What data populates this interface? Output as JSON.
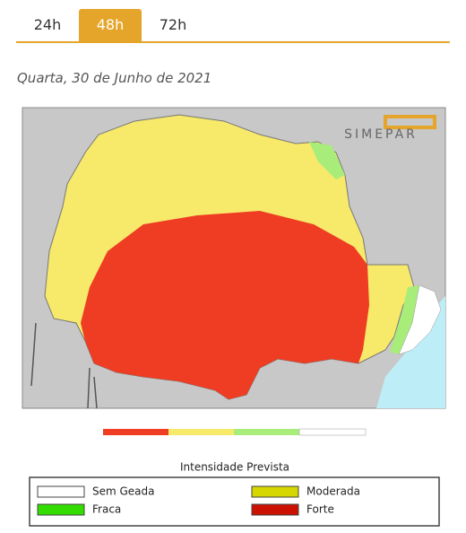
{
  "tabs": [
    "24h",
    "48h",
    "72h"
  ],
  "date": "Quarta, 30 de Junho de 2021",
  "map": {
    "logo": "SIMEPAR"
  },
  "legend": {
    "title": "Intensidade Prevista",
    "items": [
      {
        "label": "Sem Geada",
        "color": "#ffffff"
      },
      {
        "label": "Moderada",
        "color": "#d6d600"
      },
      {
        "label": "Fraca",
        "color": "#33dd00"
      },
      {
        "label": "Forte",
        "color": "#cc1100"
      }
    ]
  }
}
